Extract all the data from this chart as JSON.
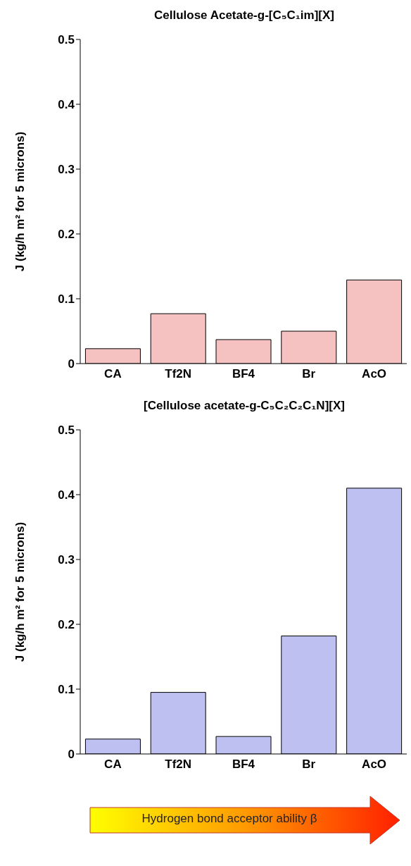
{
  "chart_data": [
    {
      "type": "bar",
      "title": "Cellulose Acetate-g-[C₅C₁im][X]",
      "ylabel": "J (kg/h m² for 5 microns)",
      "categories": [
        "CA",
        "Tf2N",
        "BF4",
        "Br",
        "AcO"
      ],
      "values": [
        0.023,
        0.077,
        0.037,
        0.05,
        0.129
      ],
      "color": "#f5c1c1",
      "ylim": [
        0,
        0.5
      ],
      "yticks": [
        0,
        0.1,
        0.2,
        0.3,
        0.4,
        0.5
      ]
    },
    {
      "type": "bar",
      "title": "[Cellulose acetate-g-C₅C₂C₂C₁N][X]",
      "ylabel": "J (kg/h m² for 5 microns)",
      "categories": [
        "CA",
        "Tf2N",
        "BF4",
        "Br",
        "AcO"
      ],
      "values": [
        0.023,
        0.095,
        0.027,
        0.182,
        0.41
      ],
      "color": "#bfc0f2",
      "ylim": [
        0,
        0.5
      ],
      "yticks": [
        0,
        0.1,
        0.2,
        0.3,
        0.4,
        0.5
      ],
      "annotations": [
        "Hydrogen bond acceptor ability β"
      ]
    }
  ]
}
